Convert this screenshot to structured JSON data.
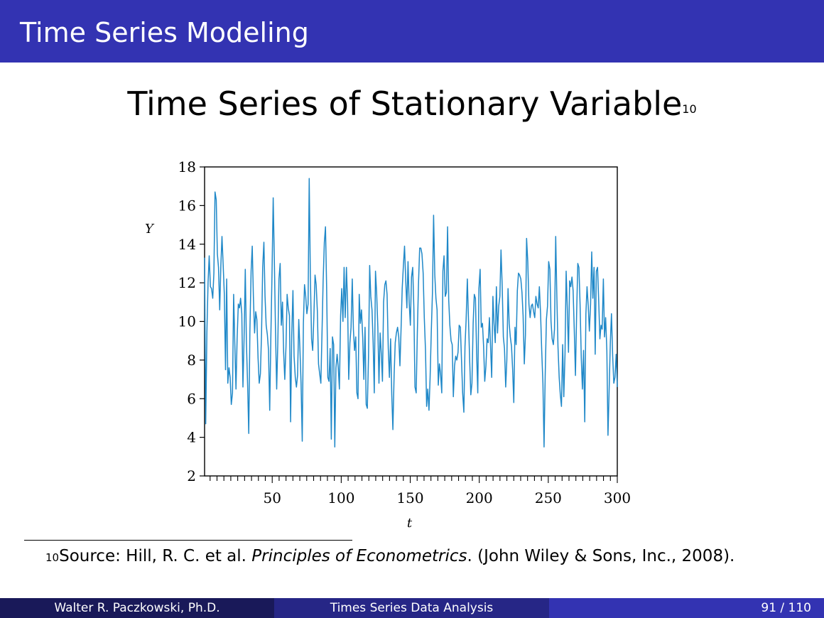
{
  "header": {
    "title": "Time Series Modeling"
  },
  "slide": {
    "title": "Time Series of Stationary Variable",
    "footnote_ref": "10"
  },
  "footnote": {
    "mark": "10",
    "prefix": "Source: Hill, R. C. et al.",
    "book": "Principles of Econometrics",
    "suffix": ". (John Wiley & Sons, Inc., 2008)."
  },
  "footer": {
    "author": "Walter R. Paczkowski, Ph.D.",
    "title": "Times Series Data Analysis",
    "page": "91 / 110"
  },
  "colors": {
    "header": "#3333b2",
    "footer_dark": "#191959",
    "footer_mid": "#262686",
    "series": "#1f88c8"
  },
  "chart_data": {
    "type": "line",
    "title": "",
    "xlabel": "t",
    "ylabel": "Y",
    "xlim": [
      1,
      300
    ],
    "ylim": [
      2,
      18
    ],
    "xticks": [
      50,
      100,
      150,
      200,
      250,
      300
    ],
    "yticks": [
      2,
      4,
      6,
      8,
      10,
      12,
      14,
      16,
      18
    ],
    "grid": false,
    "legend": "none",
    "series": [
      {
        "values": [
          13.3,
          4.7,
          9.5,
          12.0,
          13.4,
          11.8,
          11.7,
          11.2,
          12.5,
          16.7,
          16.3,
          13.5,
          12.8,
          10.6,
          12.9,
          14.4,
          12.9,
          11.4,
          7.5,
          12.2,
          6.8,
          7.6,
          7.1,
          5.7,
          6.3,
          11.4,
          8.8,
          6.5,
          9.1,
          10.9,
          10.7,
          11.2,
          10.4,
          6.6,
          9.1,
          12.7,
          8.9,
          6.7,
          4.2,
          9.5,
          12.6,
          13.9,
          11.3,
          9.4,
          10.5,
          10.1,
          8.1,
          6.8,
          7.3,
          9.4,
          12.8,
          14.1,
          11.3,
          9.8,
          9.3,
          8.5,
          5.4,
          9.2,
          12.4,
          16.4,
          13.2,
          9.6,
          6.5,
          8.9,
          12.2,
          13.0,
          9.8,
          11.0,
          8.4,
          7.0,
          8.7,
          11.4,
          10.7,
          10.3,
          4.8,
          9.3,
          11.6,
          8.2,
          7.1,
          6.6,
          7.2,
          10.1,
          8.6,
          6.8,
          3.8,
          9.9,
          11.9,
          11.3,
          10.4,
          10.9,
          17.4,
          12.4,
          9.1,
          8.5,
          10.2,
          12.4,
          11.9,
          10.5,
          7.8,
          7.3,
          6.8,
          9.4,
          12.1,
          14.1,
          14.9,
          11.8,
          7.1,
          6.9,
          8.6,
          3.9,
          9.2,
          8.8,
          3.5,
          7.6,
          8.3,
          7.6,
          6.5,
          10.3,
          11.7,
          10.0,
          12.8,
          10.2,
          12.8,
          11.0,
          7.0,
          8.9,
          9.7,
          12.2,
          9.6,
          8.5,
          9.2,
          6.3,
          6.0,
          11.4,
          9.9,
          10.6,
          9.2,
          7.0,
          9.7,
          5.7,
          5.5,
          8.2,
          12.9,
          11.3,
          10.6,
          8.9,
          6.3,
          12.6,
          11.5,
          9.7,
          6.8,
          9.4,
          8.3,
          6.9,
          11.0,
          11.9,
          12.1,
          11.4,
          8.6,
          7.1,
          9.1,
          6.2,
          4.4,
          7.2,
          8.9,
          9.4,
          9.7,
          9.2,
          7.7,
          9.6,
          11.7,
          12.9,
          13.9,
          12.2,
          10.7,
          13.1,
          11.0,
          9.8,
          12.3,
          12.8,
          10.7,
          6.6,
          6.3,
          9.4,
          11.9,
          13.8,
          13.8,
          13.5,
          12.5,
          10.2,
          8.5,
          5.6,
          6.5,
          5.4,
          7.1,
          9.4,
          11.5,
          15.5,
          12.4,
          11.2,
          10.6,
          6.7,
          7.8,
          7.3,
          6.3,
          12.6,
          13.4,
          11.3,
          11.5,
          14.9,
          11.1,
          9.8,
          9.0,
          8.8,
          6.1,
          7.7,
          8.2,
          8.0,
          8.4,
          9.8,
          9.7,
          8.0,
          6.3,
          5.3,
          8.7,
          10.1,
          12.2,
          10.1,
          8.1,
          6.2,
          6.8,
          9.9,
          11.4,
          11.2,
          8.3,
          6.3,
          11.7,
          12.7,
          9.7,
          9.9,
          8.7,
          6.9,
          7.7,
          9.1,
          8.9,
          10.2,
          8.7,
          7.1,
          11.3,
          9.9,
          8.9,
          11.8,
          9.4,
          10.8,
          11.3,
          13.7,
          11.8,
          9.2,
          8.6,
          6.6,
          8.0,
          11.7,
          9.9,
          9.2,
          8.7,
          7.5,
          5.8,
          9.7,
          8.8,
          11.6,
          12.5,
          12.4,
          12.2,
          11.5,
          10.3,
          7.8,
          9.3,
          14.3,
          13.1,
          10.9,
          10.2,
          10.8,
          10.9,
          10.5,
          10.2,
          11.3,
          10.9,
          10.7,
          11.8,
          10.4,
          8.5,
          6.8,
          3.5,
          7.2,
          10.1,
          10.8,
          13.1,
          12.7,
          10.0,
          9.1,
          8.8,
          9.6,
          14.4,
          11.3,
          8.7,
          7.1,
          6.2,
          5.6,
          8.8,
          6.1,
          8.3,
          12.6,
          10.7,
          8.4,
          12.1,
          11.8,
          12.3,
          11.6,
          9.6,
          7.2,
          10.3,
          13.0,
          12.8,
          10.9,
          8.1,
          6.5,
          8.5,
          4.8,
          10.4,
          11.8,
          10.8,
          9.5,
          10.9,
          13.6,
          11.2,
          12.8,
          8.3,
          12.6,
          12.8,
          11.1,
          9.1,
          9.8,
          9.6,
          12.2,
          9.2,
          10.2,
          8.5,
          4.1,
          6.4,
          8.9,
          10.4,
          8.2,
          6.8,
          7.1,
          8.3,
          6.6
        ]
      }
    ]
  }
}
